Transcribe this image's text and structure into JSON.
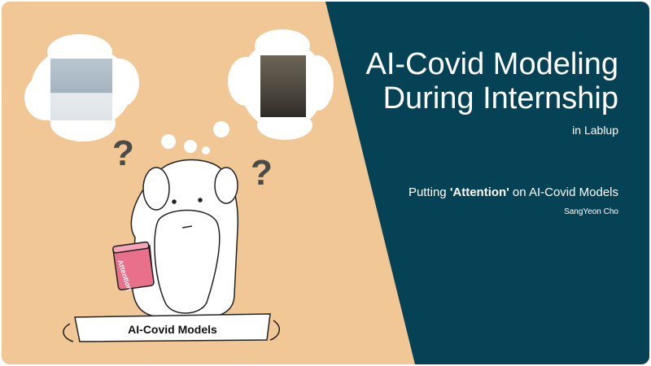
{
  "slide": {
    "title_line1": "AI-Covid Modeling",
    "title_line2": "During Internship",
    "organization": "in Lablup",
    "subtitle_prefix": "Putting ",
    "subtitle_bold": "'Attention'",
    "subtitle_suffix": " on AI-Covid Models",
    "author": "SangYeon Cho"
  },
  "illustration": {
    "question_mark": "?",
    "cup_label": "Attention",
    "box_label": "AI-Covid Models"
  },
  "colors": {
    "left_panel": "#f0c795",
    "right_panel": "#064255",
    "text_light": "#ffffff"
  }
}
